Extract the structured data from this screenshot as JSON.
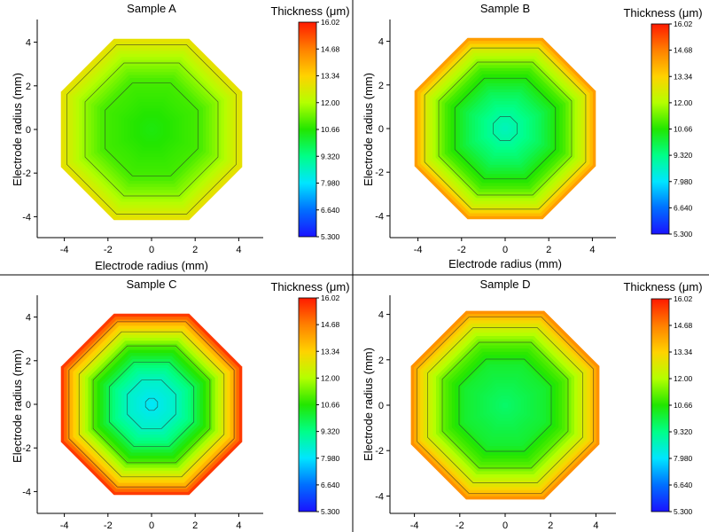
{
  "chart_data": [
    {
      "type": "heatmap",
      "subtype": "filled-contour",
      "title": "Sample A",
      "xlabel": "Electrode radius (mm)",
      "ylabel": "Electrode radius (mm)",
      "xlim": [
        -5,
        5
      ],
      "ylim": [
        -5,
        5
      ],
      "xticks": [
        -4,
        -2,
        0,
        2,
        4
      ],
      "yticks": [
        -4,
        -2,
        0,
        2,
        4
      ],
      "colorbar": {
        "title": "Thickness (μm)",
        "min": 5.3,
        "max": 16.02,
        "ticks": [
          "16.02",
          "14.68",
          "13.34",
          "12.00",
          "10.66",
          "9.320",
          "7.980",
          "6.640",
          "5.300"
        ]
      },
      "shape": "octagon",
      "max_radius_mm": 4.5,
      "radial_profile": [
        {
          "r": 0.0,
          "thickness": 10.5
        },
        {
          "r": 2.5,
          "thickness": 11.0
        },
        {
          "r": 3.5,
          "thickness": 11.8
        },
        {
          "r": 4.5,
          "thickness": 12.9
        }
      ],
      "contour_levels_r": [
        2.3,
        3.3,
        4.2
      ]
    },
    {
      "type": "heatmap",
      "subtype": "filled-contour",
      "title": "Sample B",
      "xlabel": "Electrode radius (mm)",
      "ylabel": "Electrode radius (mm)",
      "xlim": [
        -5,
        5
      ],
      "ylim": [
        -5,
        5
      ],
      "xticks": [
        -4,
        -2,
        0,
        2,
        4
      ],
      "yticks": [
        -4,
        -2,
        0,
        2,
        4
      ],
      "colorbar": {
        "title": "Thickness (μm)",
        "min": 5.3,
        "max": 16.02,
        "ticks": [
          "16.02",
          "14.68",
          "13.34",
          "12.00",
          "10.66",
          "9.320",
          "7.980",
          "6.640",
          "5.300"
        ]
      },
      "shape": "octagon",
      "max_radius_mm": 4.5,
      "radial_profile": [
        {
          "r": 0.0,
          "thickness": 8.7
        },
        {
          "r": 0.6,
          "thickness": 9.0
        },
        {
          "r": 1.8,
          "thickness": 9.8
        },
        {
          "r": 3.0,
          "thickness": 11.0
        },
        {
          "r": 4.0,
          "thickness": 12.6
        },
        {
          "r": 4.5,
          "thickness": 14.2
        }
      ],
      "contour_levels_r": [
        0.6,
        2.5,
        3.3,
        4.0
      ]
    },
    {
      "type": "heatmap",
      "subtype": "filled-contour",
      "title": "Sample C",
      "xlabel": "",
      "ylabel": "Electrode radius (mm)",
      "xlim": [
        -5,
        5
      ],
      "ylim": [
        -5,
        5
      ],
      "xticks": [
        -4,
        -2,
        0,
        2,
        4
      ],
      "yticks": [
        -4,
        -2,
        0,
        2,
        4
      ],
      "colorbar": {
        "title": "Thickness (μm)",
        "min": 5.3,
        "max": 16.02,
        "ticks": [
          "16.02",
          "14.68",
          "13.34",
          "12.00",
          "10.66",
          "9.320",
          "7.980",
          "6.640",
          "5.300"
        ]
      },
      "shape": "octagon",
      "max_radius_mm": 4.5,
      "radial_profile": [
        {
          "r": 0.0,
          "thickness": 8.0
        },
        {
          "r": 1.2,
          "thickness": 8.6
        },
        {
          "r": 2.0,
          "thickness": 9.5
        },
        {
          "r": 3.0,
          "thickness": 11.2
        },
        {
          "r": 4.0,
          "thickness": 13.6
        },
        {
          "r": 4.5,
          "thickness": 15.6
        }
      ],
      "contour_levels_r": [
        0.3,
        1.2,
        2.1,
        2.9,
        3.6,
        4.1
      ]
    },
    {
      "type": "heatmap",
      "subtype": "filled-contour",
      "title": "Sample D",
      "xlabel": "",
      "ylabel": "Electrode radius (mm)",
      "xlim": [
        -4.5,
        4.5
      ],
      "ylim": [
        -4.5,
        4.5
      ],
      "xticks": [
        -4,
        -2,
        0,
        2,
        4
      ],
      "yticks": [
        -4,
        -2,
        0,
        2,
        4
      ],
      "colorbar": {
        "title": "Thickness (μm)",
        "min": 5.3,
        "max": 16.02,
        "ticks": [
          "16.02",
          "14.68",
          "13.34",
          "12.00",
          "10.66",
          "9.320",
          "7.980",
          "6.640",
          "5.300"
        ]
      },
      "shape": "octagon",
      "max_radius_mm": 4.5,
      "radial_profile": [
        {
          "r": 0.0,
          "thickness": 9.6
        },
        {
          "r": 2.0,
          "thickness": 10.2
        },
        {
          "r": 3.0,
          "thickness": 11.2
        },
        {
          "r": 4.0,
          "thickness": 13.0
        },
        {
          "r": 4.5,
          "thickness": 14.4
        }
      ],
      "contour_levels_r": [
        2.2,
        3.0,
        3.7,
        4.2
      ]
    }
  ],
  "colors": {
    "colormap": [
      "#1a12ff",
      "#006fff",
      "#00e5ff",
      "#00ff88",
      "#22e600",
      "#b4ff00",
      "#ffd200",
      "#ff8000",
      "#ff1a00"
    ],
    "contour_line": "#2b2b2b",
    "frame": "#000000"
  }
}
